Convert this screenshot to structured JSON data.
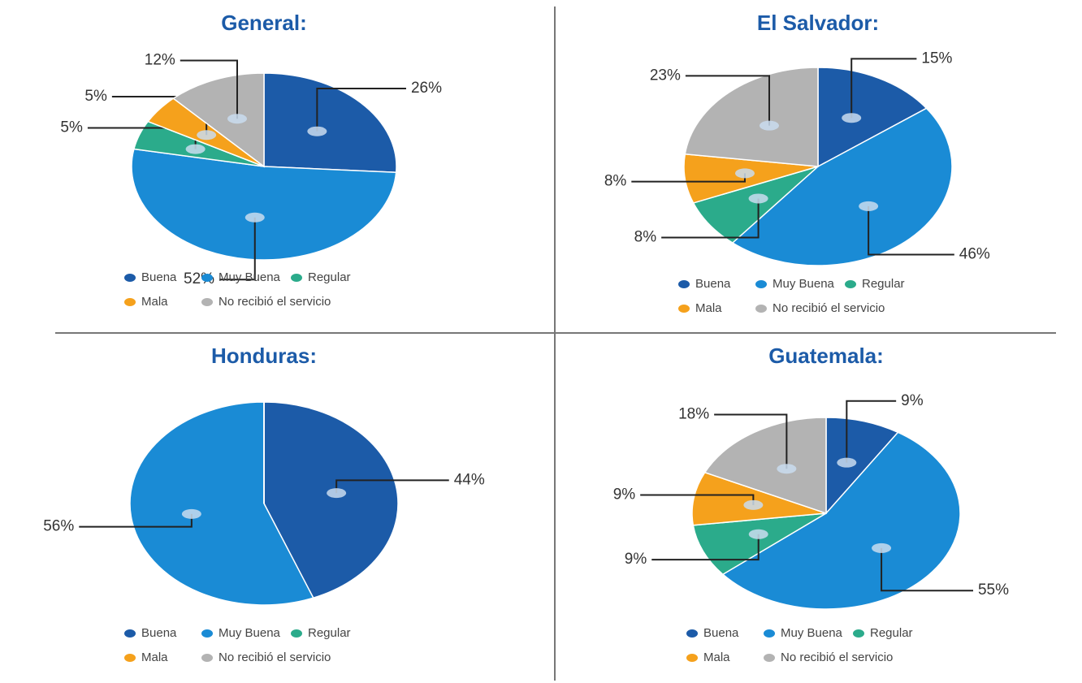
{
  "chart_data": [
    {
      "type": "pie",
      "title": "General:",
      "categories": [
        "Buena",
        "Muy Buena",
        "Regular",
        "Mala",
        "No recibió el servicio"
      ],
      "values": [
        26,
        52,
        5,
        5,
        12
      ],
      "value_labels": [
        "26%",
        "52%",
        "5%",
        "5%",
        "12%"
      ],
      "colors": [
        "#1c5ba8",
        "#1a8bd5",
        "#2bab8b",
        "#f5a11c",
        "#b3b3b3"
      ]
    },
    {
      "type": "pie",
      "title": "El Salvador:",
      "categories": [
        "Buena",
        "Muy Buena",
        "Regular",
        "Mala",
        "No recibió el servicio"
      ],
      "values": [
        15,
        46,
        8,
        8,
        23
      ],
      "value_labels": [
        "15%",
        "46%",
        "8%",
        "8%",
        "23%"
      ],
      "colors": [
        "#1c5ba8",
        "#1a8bd5",
        "#2bab8b",
        "#f5a11c",
        "#b3b3b3"
      ]
    },
    {
      "type": "pie",
      "title": "Honduras:",
      "categories": [
        "Buena",
        "Muy Buena",
        "Regular",
        "Mala",
        "No recibió el servicio"
      ],
      "values": [
        44,
        56,
        0,
        0,
        0
      ],
      "value_labels": [
        "44%",
        "56%",
        null,
        null,
        null
      ],
      "colors": [
        "#1c5ba8",
        "#1a8bd5",
        "#2bab8b",
        "#f5a11c",
        "#b3b3b3"
      ]
    },
    {
      "type": "pie",
      "title": "Guatemala:",
      "categories": [
        "Buena",
        "Muy Buena",
        "Regular",
        "Mala",
        "No recibió el servicio"
      ],
      "values": [
        9,
        55,
        9,
        9,
        18
      ],
      "value_labels": [
        "9%",
        "55%",
        "9%",
        "9%",
        "18%"
      ],
      "colors": [
        "#1c5ba8",
        "#1a8bd5",
        "#2bab8b",
        "#f5a11c",
        "#b3b3b3"
      ]
    }
  ]
}
